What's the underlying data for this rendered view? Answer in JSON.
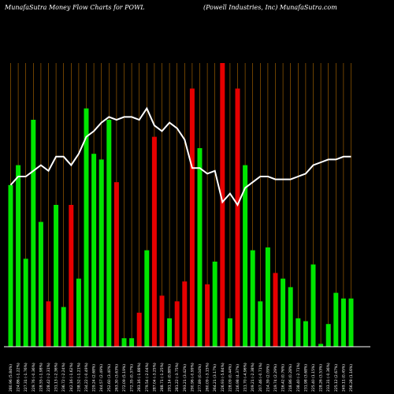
{
  "chart_data": {
    "type": "bar",
    "title": "MunafaSutra  Money Flow  Charts for POWL",
    "subtitle": "(Powell Industries, Inc) MunafaSutra.com",
    "ylim": [
      0,
      100
    ],
    "categories": [
      "280.96 (5.84%)",
      "224.86 (-1.22%)",
      "227.31 (-1.76%)",
      "229.76 (-0.36%)",
      "228.55 (-1.98%)",
      "228.42 (-2.31%)",
      "231.13 (-2.36%)",
      "236.72 (-2.24%)",
      "242.16 (-1.62%)",
      "238.52 (-1.21%)",
      "234.22 (-0.49%)",
      "229.24 (2.68%)",
      "244.57 (2.49%)",
      "252.60 (3.40%)",
      "263.30 (3.63%)",
      "272.09 (5.19%)",
      "272.35 (0.37%)",
      "283.16 (-1.88%)",
      "279.54 (-2.04%)",
      "287.04 (-3.25%)",
      "288.71 (-1.25%)",
      "291.14 (0.88%)",
      "281.22 (-3.75%)",
      "293.21 (3.42%)",
      "290.96 (-0.99%)",
      "277.89 (0.04%)",
      "260.09 (-3.15%)",
      "264.21 (3.17%)",
      "226.93 (-5.84%)",
      "228.09 (0.44%)",
      "216.98 (4.37%)",
      "211.70 (-4.96%)",
      "209.21 (-2.38%)",
      "207.46 (-0.71%)",
      "214.39 (2.09%)",
      "219.74 (2.29%)",
      "216.42 (0.76%)",
      "218.86 (0.28%)",
      "238.40 (-2.71%)",
      "231.98 (3.68%)",
      "225.40 (1.15%)",
      "228.26 (3.53%)",
      "233.31 (-0.36%)",
      "225.12 (2.67%)",
      "249.11 (0.45%)",
      "256.28 (1.16%)"
    ],
    "series": [
      {
        "values": [
          57,
          64,
          31,
          80,
          44,
          16,
          50,
          14,
          50,
          24,
          84,
          68,
          66,
          80,
          58,
          3,
          3,
          12,
          34,
          74,
          18,
          10,
          16,
          23,
          91,
          70,
          22,
          30,
          100,
          10,
          91,
          64,
          34,
          16,
          35,
          26,
          24,
          21,
          10,
          9,
          29,
          1,
          8,
          19,
          17,
          17
        ]
      }
    ],
    "line_values": [
      57,
      60,
      60,
      62,
      64,
      62,
      67,
      67,
      64,
      68,
      74,
      76,
      79,
      81,
      80,
      81,
      81,
      80,
      84,
      78,
      76,
      79,
      77,
      73,
      63,
      63,
      61,
      62,
      51,
      54,
      50,
      56,
      58,
      60,
      60,
      59,
      59,
      59,
      60,
      61,
      64,
      65,
      66,
      66,
      67,
      67
    ]
  },
  "colors": {
    "up": "#00e600",
    "down": "#e60000",
    "line": "#ffffff",
    "grid": "#b36b00",
    "bg": "#000000"
  }
}
